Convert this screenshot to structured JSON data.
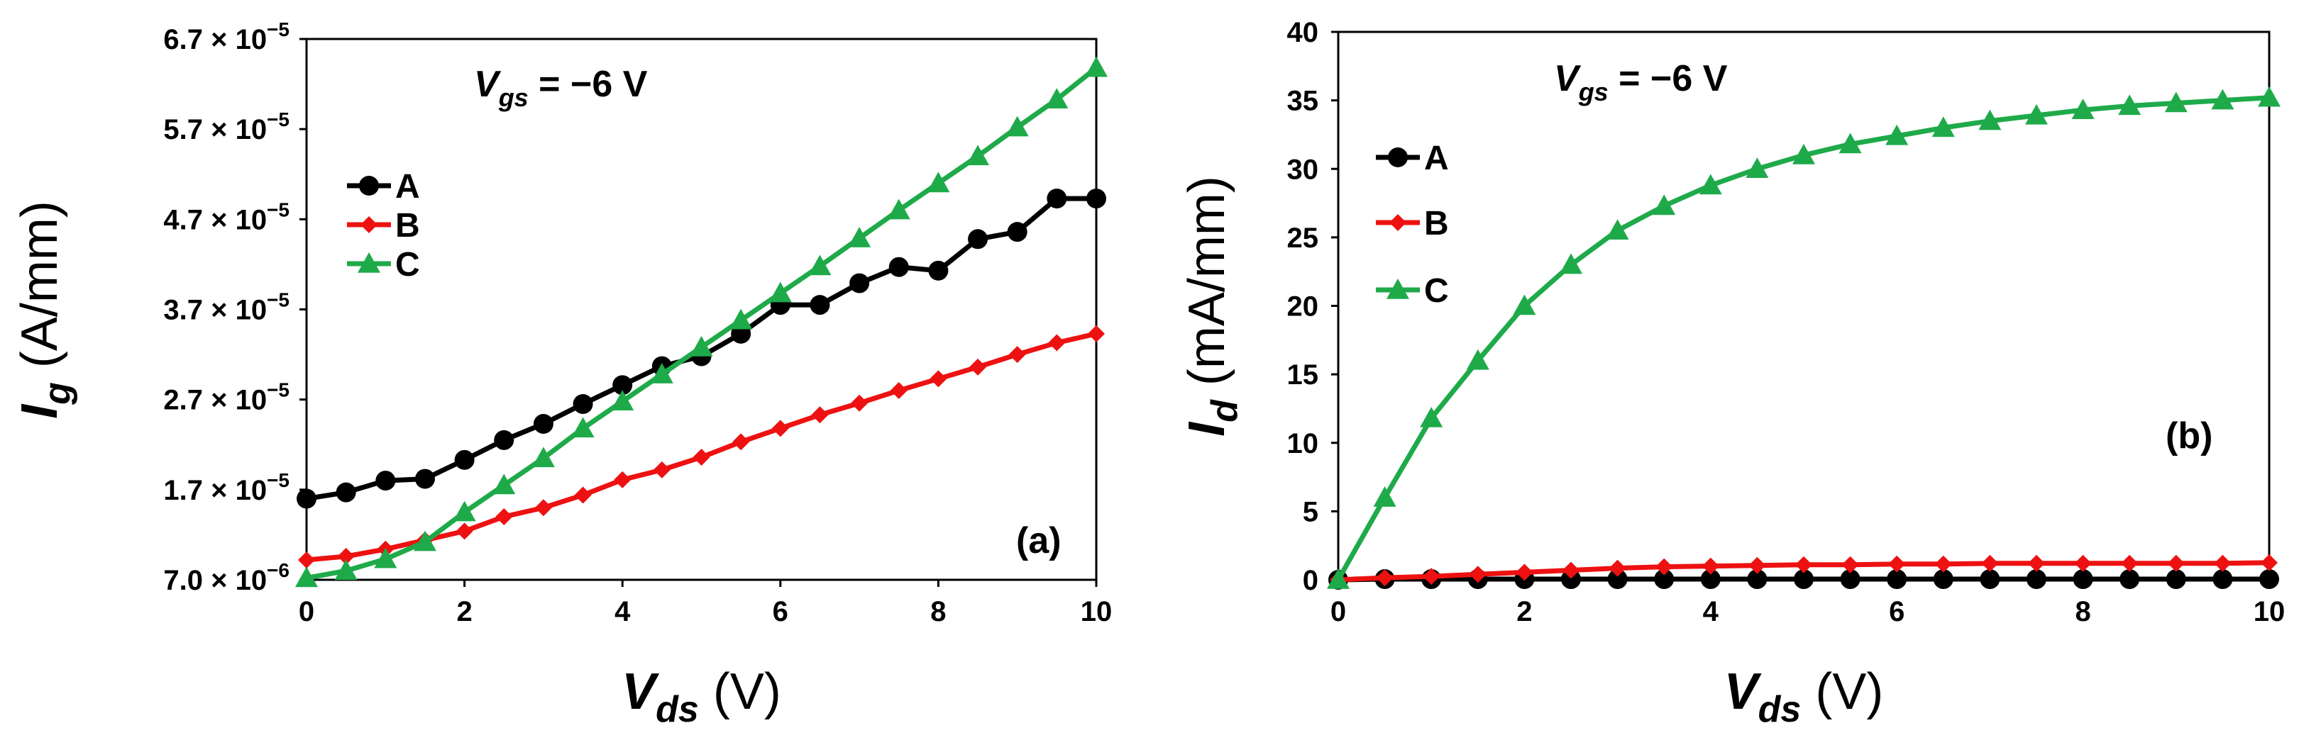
{
  "colors": {
    "A": "#000000",
    "B": "#ee1111",
    "C": "#1faa4a"
  },
  "chart_data": [
    {
      "type": "line",
      "panel_label": "(a)",
      "annotation": {
        "symbol": "V",
        "subscript": "gs",
        "text": " = −6 V"
      },
      "xlabel": {
        "symbol": "V",
        "subscript": "ds",
        "unit": " (V)"
      },
      "ylabel": {
        "symbol": "I",
        "subscript": "g",
        "unit": " (A/mm)"
      },
      "xlim": [
        0,
        10
      ],
      "ylim": [
        7e-06,
        6.7e-05
      ],
      "xticks": [
        0,
        2,
        4,
        6,
        8,
        10
      ],
      "xtick_labels": [
        "0",
        "2",
        "4",
        "6",
        "8",
        "10"
      ],
      "yticks": [
        7e-06,
        1.7e-05,
        2.7e-05,
        3.7e-05,
        4.7e-05,
        5.7e-05,
        6.7e-05
      ],
      "ytick_labels": [
        {
          "mant": "7.0",
          "exp": "−6"
        },
        {
          "mant": "1.7",
          "exp": "−5"
        },
        {
          "mant": "2.7",
          "exp": "−5"
        },
        {
          "mant": "3.7",
          "exp": "−5"
        },
        {
          "mant": "4.7",
          "exp": "−5"
        },
        {
          "mant": "5.7",
          "exp": "−5"
        },
        {
          "mant": "6.7",
          "exp": "−5"
        }
      ],
      "x": [
        0,
        0.5,
        1,
        1.5,
        2,
        2.5,
        3,
        3.5,
        4,
        4.5,
        5,
        5.5,
        6,
        6.5,
        7,
        7.5,
        8,
        8.5,
        9,
        9.5,
        10
      ],
      "series": [
        {
          "name": "A",
          "marker": "circle",
          "values": [
            1.6e-05,
            1.67e-05,
            1.8e-05,
            1.82e-05,
            2.03e-05,
            2.25e-05,
            2.43e-05,
            2.65e-05,
            2.86e-05,
            3.07e-05,
            3.18e-05,
            3.43e-05,
            3.75e-05,
            3.75e-05,
            3.99e-05,
            4.17e-05,
            4.13e-05,
            4.48e-05,
            4.56e-05,
            4.93e-05,
            4.93e-05
          ]
        },
        {
          "name": "B",
          "marker": "diamond",
          "values": [
            9.2e-06,
            9.6e-06,
            1.04e-05,
            1.14e-05,
            1.24e-05,
            1.4e-05,
            1.5e-05,
            1.64e-05,
            1.81e-05,
            1.92e-05,
            2.06e-05,
            2.23e-05,
            2.38e-05,
            2.53e-05,
            2.66e-05,
            2.8e-05,
            2.93e-05,
            3.06e-05,
            3.2e-05,
            3.33e-05,
            3.43e-05
          ]
        },
        {
          "name": "C",
          "marker": "triangle",
          "values": [
            7.2e-06,
            8e-06,
            9.3e-06,
            1.12e-05,
            1.45e-05,
            1.75e-05,
            2.05e-05,
            2.38e-05,
            2.68e-05,
            2.98e-05,
            3.28e-05,
            3.58e-05,
            3.88e-05,
            4.18e-05,
            4.49e-05,
            4.8e-05,
            5.1e-05,
            5.4e-05,
            5.72e-05,
            6.03e-05,
            6.38e-05
          ]
        }
      ],
      "legend": [
        "A",
        "B",
        "C"
      ]
    },
    {
      "type": "line",
      "panel_label": "(b)",
      "annotation": {
        "symbol": "V",
        "subscript": "gs",
        "text": " = −6 V"
      },
      "xlabel": {
        "symbol": "V",
        "subscript": "ds",
        "unit": " (V)"
      },
      "ylabel": {
        "symbol": "I",
        "subscript": "d",
        "unit": " (mA/mm)"
      },
      "xlim": [
        0,
        10
      ],
      "ylim": [
        0,
        40
      ],
      "xticks": [
        0,
        2,
        4,
        6,
        8,
        10
      ],
      "xtick_labels": [
        "0",
        "2",
        "4",
        "6",
        "8",
        "10"
      ],
      "yticks": [
        0,
        5,
        10,
        15,
        20,
        25,
        30,
        35,
        40
      ],
      "ytick_labels": [
        "0",
        "5",
        "10",
        "15",
        "20",
        "25",
        "30",
        "35",
        "40"
      ],
      "x": [
        0,
        0.5,
        1,
        1.5,
        2,
        2.5,
        3,
        3.5,
        4,
        4.5,
        5,
        5.5,
        6,
        6.5,
        7,
        7.5,
        8,
        8.5,
        9,
        9.5,
        10
      ],
      "series": [
        {
          "name": "A",
          "marker": "circle",
          "values": [
            0,
            0.05,
            0.05,
            0.05,
            0.05,
            0.05,
            0.05,
            0.05,
            0.05,
            0.05,
            0.05,
            0.05,
            0.05,
            0.05,
            0.05,
            0.05,
            0.05,
            0.05,
            0.05,
            0.05,
            0.05
          ]
        },
        {
          "name": "B",
          "marker": "diamond",
          "values": [
            0,
            0.15,
            0.25,
            0.4,
            0.55,
            0.7,
            0.85,
            0.95,
            1.0,
            1.05,
            1.1,
            1.1,
            1.15,
            1.15,
            1.2,
            1.2,
            1.2,
            1.2,
            1.2,
            1.2,
            1.25
          ]
        },
        {
          "name": "C",
          "marker": "triangle",
          "values": [
            0,
            6.0,
            11.8,
            16.0,
            20.0,
            23.0,
            25.5,
            27.3,
            28.8,
            30.0,
            31.0,
            31.8,
            32.4,
            33.0,
            33.5,
            33.9,
            34.3,
            34.6,
            34.8,
            35.0,
            35.2
          ]
        }
      ],
      "legend": [
        "A",
        "B",
        "C"
      ]
    }
  ]
}
